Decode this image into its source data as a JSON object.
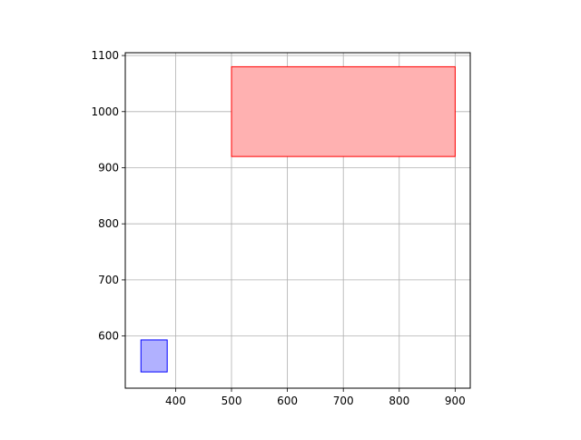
{
  "chart_data": {
    "type": "rectangles",
    "title": "",
    "xlabel": "",
    "ylabel": "",
    "xlim": [
      310,
      927
    ],
    "ylim": [
      507,
      1105
    ],
    "grid": true,
    "x_ticks": [
      400,
      500,
      600,
      700,
      800,
      900
    ],
    "y_ticks": [
      600,
      700,
      800,
      900,
      1000,
      1100
    ],
    "x_tick_labels": [
      "400",
      "500",
      "600",
      "700",
      "800",
      "900"
    ],
    "y_tick_labels": [
      "600",
      "700",
      "800",
      "900",
      "1000",
      "1100"
    ],
    "rectangles": [
      {
        "x0": 500,
        "x1": 900,
        "y0": 920,
        "y1": 1080,
        "fill": "#ffb1b1",
        "stroke": "#ff0000"
      },
      {
        "x0": 338,
        "x1": 385,
        "y0": 536,
        "y1": 593,
        "fill": "#b1b1ff",
        "stroke": "#0000ff"
      }
    ]
  }
}
